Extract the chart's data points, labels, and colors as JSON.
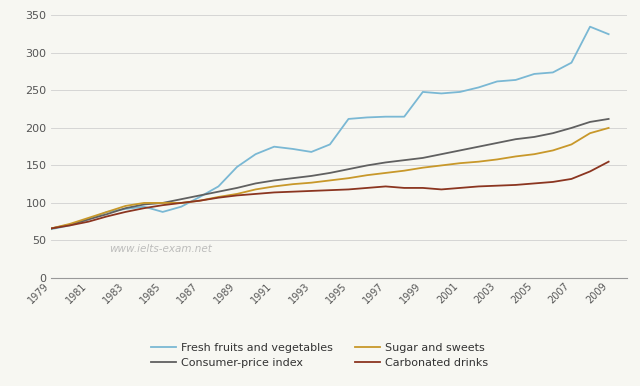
{
  "years": [
    1979,
    1980,
    1981,
    1982,
    1983,
    1984,
    1985,
    1986,
    1987,
    1988,
    1989,
    1990,
    1991,
    1992,
    1993,
    1994,
    1995,
    1996,
    1997,
    1998,
    1999,
    2000,
    2001,
    2002,
    2003,
    2004,
    2005,
    2006,
    2007,
    2008,
    2009
  ],
  "fresh_fruits_veg": [
    65,
    70,
    78,
    88,
    92,
    95,
    88,
    95,
    108,
    122,
    148,
    165,
    175,
    172,
    168,
    178,
    212,
    214,
    215,
    215,
    248,
    246,
    248,
    254,
    262,
    264,
    272,
    274,
    287,
    335,
    325
  ],
  "consumer_price_index": [
    66,
    71,
    78,
    85,
    93,
    98,
    100,
    105,
    110,
    115,
    120,
    126,
    130,
    133,
    136,
    140,
    145,
    150,
    154,
    157,
    160,
    165,
    170,
    175,
    180,
    185,
    188,
    193,
    200,
    208,
    212
  ],
  "sugar_sweets": [
    66,
    72,
    80,
    88,
    96,
    100,
    100,
    100,
    103,
    108,
    112,
    118,
    122,
    125,
    127,
    130,
    133,
    137,
    140,
    143,
    147,
    150,
    153,
    155,
    158,
    162,
    165,
    170,
    178,
    193,
    200
  ],
  "carbonated_drinks": [
    66,
    70,
    75,
    82,
    88,
    93,
    97,
    100,
    103,
    107,
    110,
    112,
    114,
    115,
    116,
    117,
    118,
    120,
    122,
    120,
    120,
    118,
    120,
    122,
    123,
    124,
    126,
    128,
    132,
    142,
    155
  ],
  "fresh_color": "#7ab8d4",
  "cpi_color": "#606060",
  "sugar_color": "#c8982a",
  "carbonated_color": "#8b3520",
  "ylim": [
    0,
    350
  ],
  "yticks": [
    0,
    50,
    100,
    150,
    200,
    250,
    300,
    350
  ],
  "background_color": "#f7f7f2",
  "watermark": "www.ielts-exam.net",
  "legend_labels": [
    "Fresh fruits and vegetables",
    "Consumer-price index",
    "Sugar and sweets",
    "Carbonated drinks"
  ]
}
